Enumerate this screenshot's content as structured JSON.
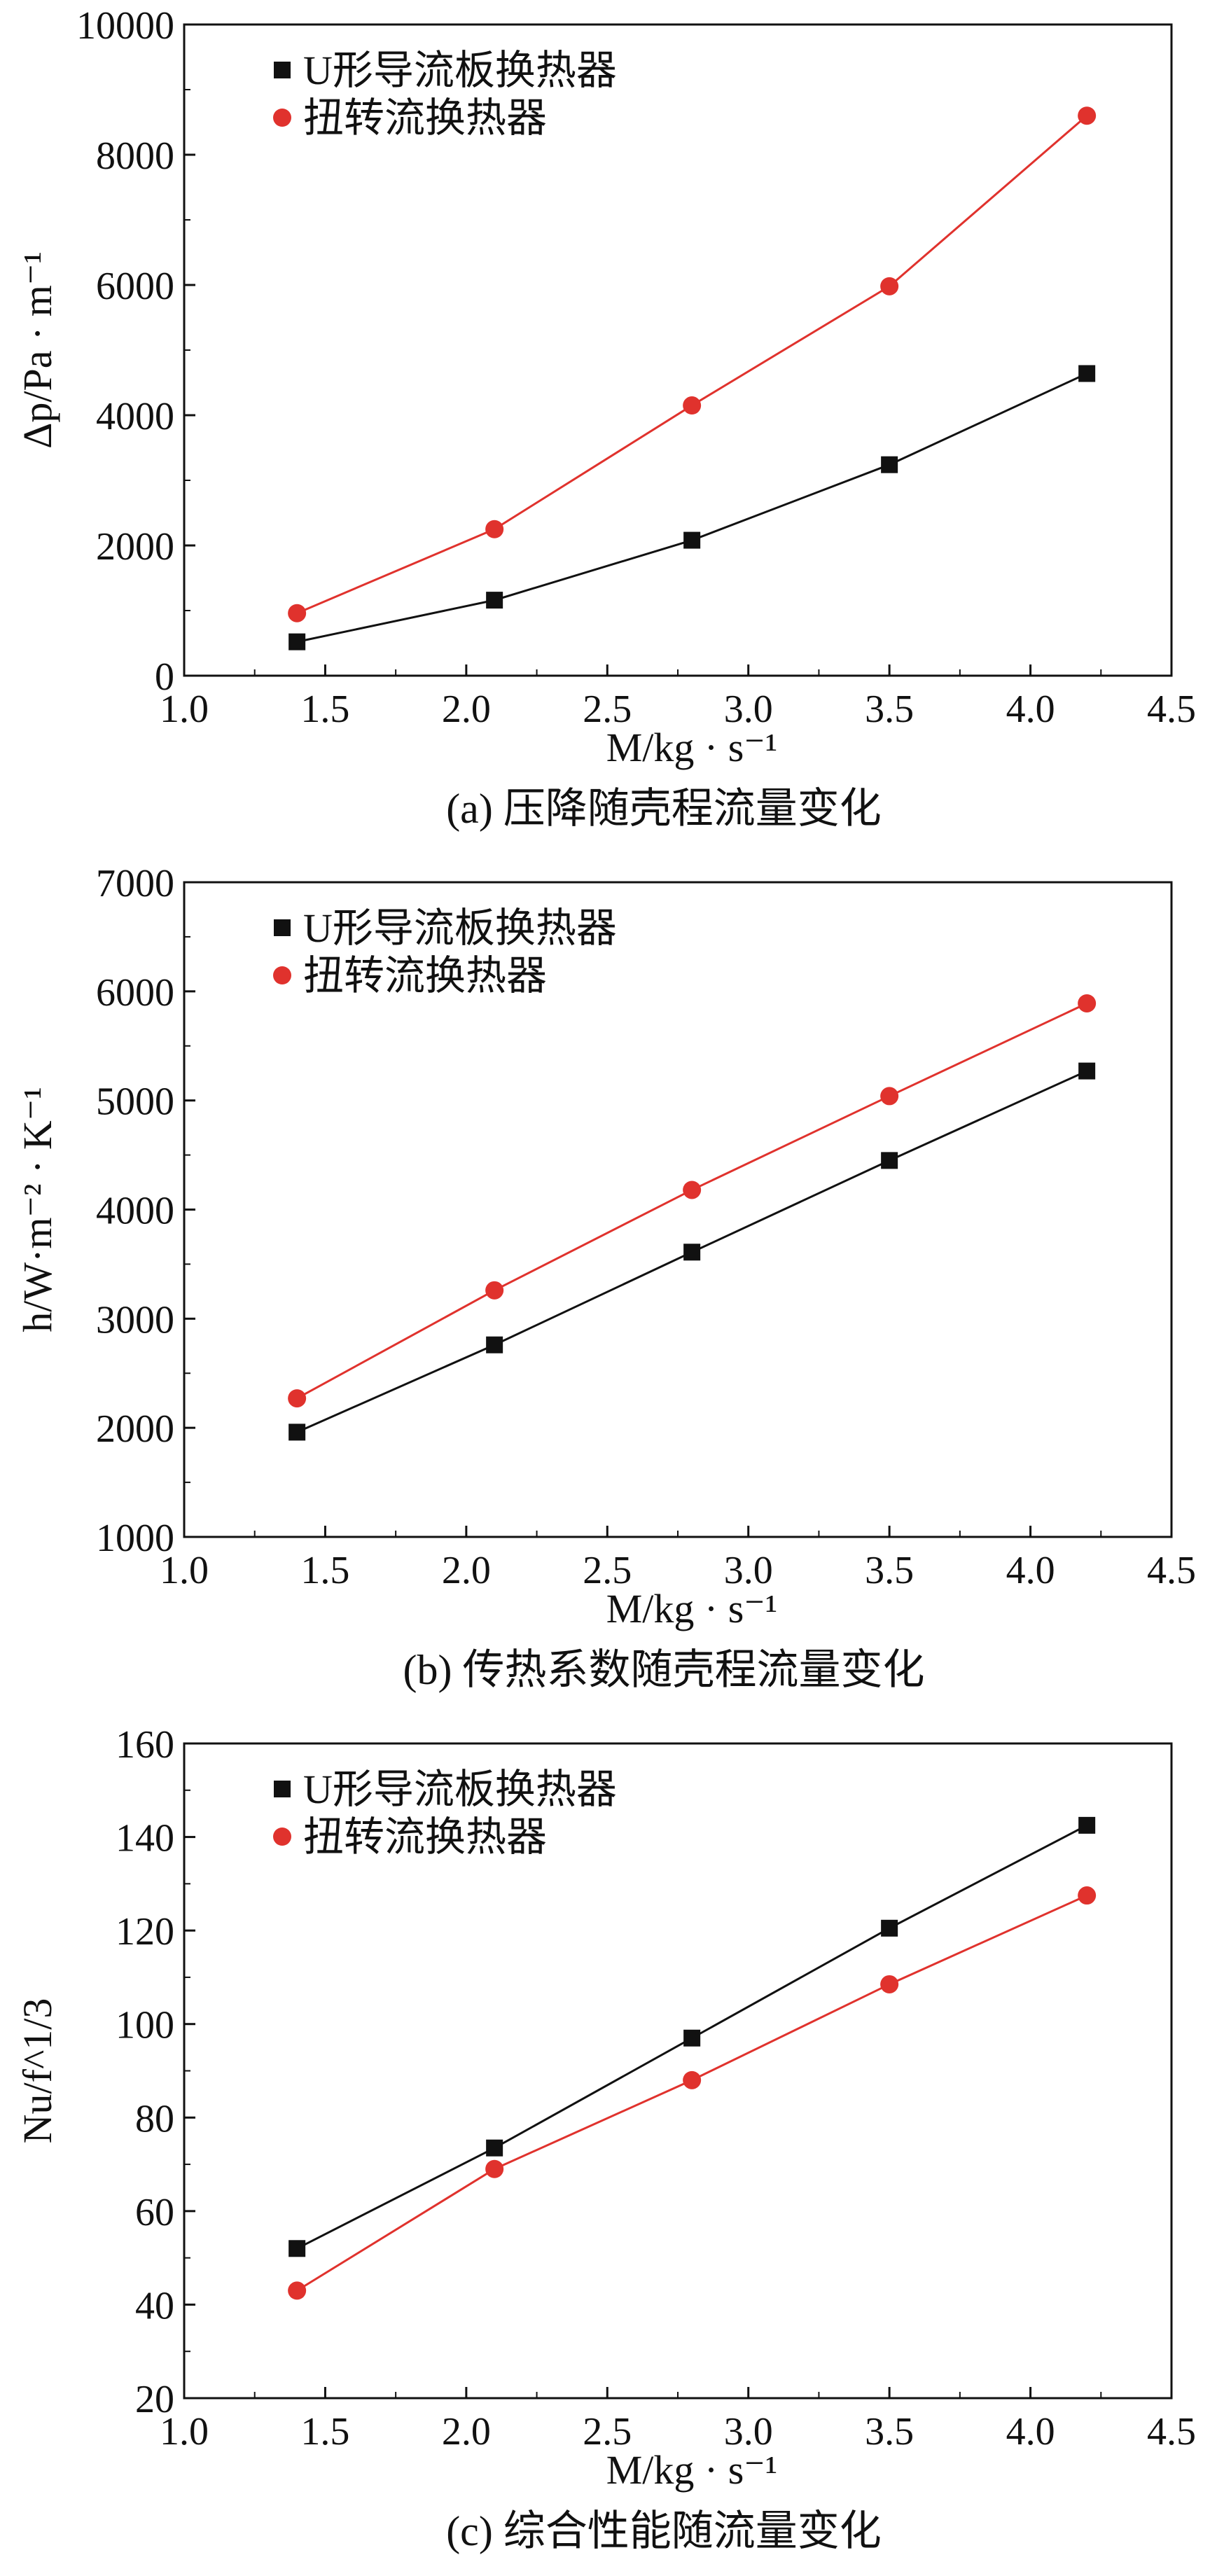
{
  "figure": {
    "series_colors": {
      "u_type": "#111111",
      "twisted": "#e0322d"
    },
    "panels": [
      {
        "caption": "(a) 压降随壳程流量变化"
      },
      {
        "caption": "(b) 传热系数随壳程流量变化"
      },
      {
        "caption": "(c) 综合性能随流量变化"
      }
    ]
  },
  "chart_data": [
    {
      "type": "line",
      "title": "(a) 压降随壳程流量变化",
      "xlabel": "M/kg · s⁻¹",
      "ylabel": "Δp/Pa · m⁻¹",
      "xlim": [
        1.0,
        4.5
      ],
      "ylim": [
        0,
        10000
      ],
      "xticks": [
        "1.0",
        "1.5",
        "2.0",
        "2.5",
        "3.0",
        "3.5",
        "4.0",
        "4.5"
      ],
      "yticks": [
        "0",
        "2000",
        "4000",
        "6000",
        "8000",
        "10000"
      ],
      "legend": "top-left",
      "x": [
        1.4,
        2.1,
        2.8,
        3.5,
        4.2
      ],
      "series": [
        {
          "name": "U形导流板换热器",
          "marker": "square",
          "values": [
            520,
            1160,
            2080,
            3240,
            4640
          ]
        },
        {
          "name": "扭转流换热器",
          "marker": "circle",
          "values": [
            960,
            2250,
            4150,
            5980,
            8600
          ]
        }
      ]
    },
    {
      "type": "line",
      "title": "(b) 传热系数随壳程流量变化",
      "xlabel": "M/kg · s⁻¹",
      "ylabel": "h/W·m⁻² · K⁻¹",
      "xlim": [
        1.0,
        4.5
      ],
      "ylim": [
        1000,
        7000
      ],
      "xticks": [
        "1.0",
        "1.5",
        "2.0",
        "2.5",
        "3.0",
        "3.5",
        "4.0",
        "4.5"
      ],
      "yticks": [
        "1000",
        "2000",
        "3000",
        "4000",
        "5000",
        "6000",
        "7000"
      ],
      "legend": "top-left",
      "x": [
        1.4,
        2.1,
        2.8,
        3.5,
        4.2
      ],
      "series": [
        {
          "name": "U形导流板换热器",
          "marker": "square",
          "values": [
            1960,
            2760,
            3610,
            4450,
            5270
          ]
        },
        {
          "name": "扭转流换热器",
          "marker": "circle",
          "values": [
            2270,
            3260,
            4180,
            5040,
            5890
          ]
        }
      ]
    },
    {
      "type": "line",
      "title": "(c) 综合性能随流量变化",
      "xlabel": "M/kg · s⁻¹",
      "ylabel": "Nu/f^1/3",
      "xlim": [
        1.0,
        4.5
      ],
      "ylim": [
        20,
        160
      ],
      "xticks": [
        "1.0",
        "1.5",
        "2.0",
        "2.5",
        "3.0",
        "3.5",
        "4.0",
        "4.5"
      ],
      "yticks": [
        "20",
        "40",
        "60",
        "80",
        "100",
        "120",
        "140",
        "160"
      ],
      "legend": "top-left",
      "x": [
        1.4,
        2.1,
        2.8,
        3.5,
        4.2
      ],
      "series": [
        {
          "name": "U形导流板换热器",
          "marker": "square",
          "values": [
            52,
            73.5,
            97,
            120.5,
            142.5
          ]
        },
        {
          "name": "扭转流换热器",
          "marker": "circle",
          "values": [
            43,
            69,
            88,
            108.5,
            127.5
          ]
        }
      ]
    }
  ]
}
